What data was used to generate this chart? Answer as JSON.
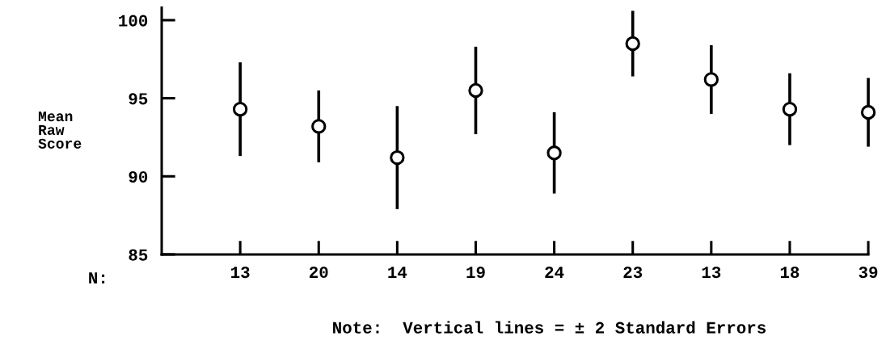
{
  "chart_data": {
    "type": "scatter",
    "categories": [
      "13",
      "20",
      "14",
      "19",
      "24",
      "23",
      "13",
      "18",
      "39"
    ],
    "xlabel": "N:",
    "ylabel": "Mean\nRaw\nScore",
    "values": [
      94.3,
      93.2,
      91.2,
      95.5,
      91.5,
      98.5,
      96.2,
      94.3,
      94.1
    ],
    "errors": [
      3.0,
      2.3,
      3.3,
      2.8,
      2.6,
      2.1,
      2.2,
      2.3,
      2.2
    ],
    "color": "#000000",
    "marker": "circle",
    "ylim": [
      85,
      100.8
    ],
    "yticks": [
      85,
      90,
      95,
      100
    ],
    "grid": false,
    "annotations": [
      "Note:  Vertical lines = ± 2 Standard Errors"
    ]
  }
}
